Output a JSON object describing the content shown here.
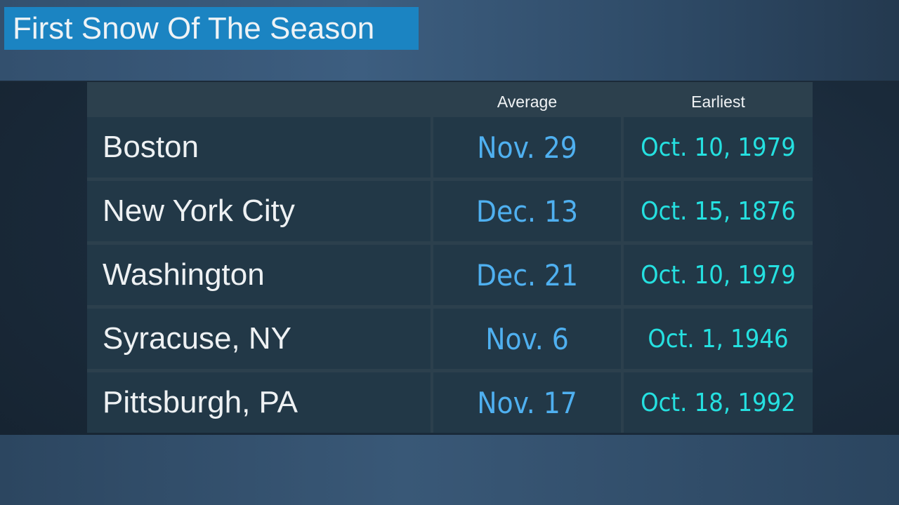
{
  "title": "First Snow Of The Season",
  "chart_data": {
    "type": "table",
    "title": "First Snow Of The Season",
    "columns": [
      "",
      "Average",
      "Earliest"
    ],
    "rows": [
      {
        "city": "Boston",
        "average": "Nov. 29",
        "earliest": "Oct. 10, 1979"
      },
      {
        "city": "New York City",
        "average": "Dec. 13",
        "earliest": "Oct. 15, 1876"
      },
      {
        "city": "Washington",
        "average": "Dec. 21",
        "earliest": "Oct. 10, 1979"
      },
      {
        "city": "Syracuse, NY",
        "average": "Nov. 6",
        "earliest": "Oct. 1, 1946"
      },
      {
        "city": "Pittsburgh, PA",
        "average": "Nov. 17",
        "earliest": "Oct. 18, 1992"
      }
    ]
  },
  "colors": {
    "title_bg": "#1b84c2",
    "average_text": "#4fb0f0",
    "earliest_text": "#25e0e0"
  }
}
